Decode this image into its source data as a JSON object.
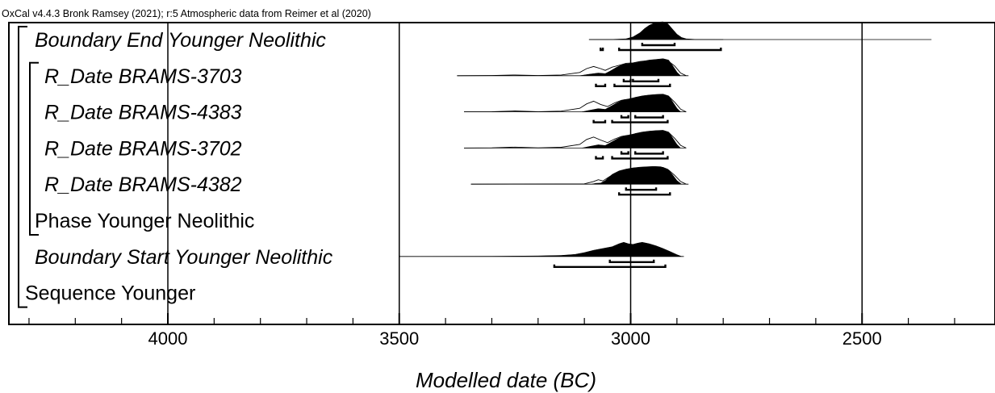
{
  "header": "OxCal v4.4.3 Bronk Ramsey (2021); r:5 Atmospheric data from Reimer et al (2020)",
  "chart_data": {
    "type": "oxcal-multiplot",
    "xlabel": "Modelled date (BC)",
    "axis": {
      "ticks": [
        4000,
        3500,
        3000,
        2500
      ],
      "range": [
        4345,
        2215
      ],
      "minor_tick_step": 100,
      "reversed": true,
      "gridlines": true
    },
    "rows": [
      {
        "label": "Boundary End Younger Neolithic",
        "italic": true,
        "indent": 1,
        "span": [
          3090,
          2350
        ],
        "posterior": [
          [
            3090,
            0
          ],
          [
            3040,
            0.01
          ],
          [
            3010,
            0.04
          ],
          [
            2995,
            0.15
          ],
          [
            2980,
            0.38
          ],
          [
            2970,
            0.62
          ],
          [
            2960,
            0.8
          ],
          [
            2950,
            0.92
          ],
          [
            2940,
            0.98
          ],
          [
            2930,
            1.0
          ],
          [
            2920,
            0.9
          ],
          [
            2910,
            0.6
          ],
          [
            2900,
            0.3
          ],
          [
            2890,
            0.12
          ],
          [
            2880,
            0.04
          ],
          [
            2860,
            0.01
          ],
          [
            2800,
            0
          ]
        ],
        "ranges_68": [
          [
            2975,
            2905
          ]
        ],
        "ranges_95": [
          [
            3065,
            3060
          ],
          [
            3025,
            2805
          ]
        ]
      },
      {
        "label": "R_Date BRAMS-3703",
        "italic": true,
        "indent": 2,
        "span": [
          3375,
          2875
        ],
        "likelihood": [
          [
            3375,
            0
          ],
          [
            3300,
            0.01
          ],
          [
            3250,
            0.04
          ],
          [
            3200,
            0.01
          ],
          [
            3150,
            0.04
          ],
          [
            3110,
            0.18
          ],
          [
            3095,
            0.4
          ],
          [
            3080,
            0.52
          ],
          [
            3065,
            0.4
          ],
          [
            3055,
            0.3
          ],
          [
            3040,
            0.48
          ],
          [
            3020,
            0.62
          ],
          [
            3010,
            0.7
          ],
          [
            2995,
            0.72
          ],
          [
            2980,
            0.8
          ],
          [
            2965,
            0.84
          ],
          [
            2950,
            0.88
          ],
          [
            2935,
            0.9
          ],
          [
            2920,
            0.85
          ],
          [
            2905,
            0.55
          ],
          [
            2892,
            0.15
          ],
          [
            2880,
            0
          ]
        ],
        "posterior": [
          [
            3110,
            0
          ],
          [
            3090,
            0.08
          ],
          [
            3070,
            0.15
          ],
          [
            3055,
            0.12
          ],
          [
            3045,
            0.25
          ],
          [
            3030,
            0.48
          ],
          [
            3015,
            0.65
          ],
          [
            3000,
            0.68
          ],
          [
            2990,
            0.72
          ],
          [
            2975,
            0.8
          ],
          [
            2960,
            0.88
          ],
          [
            2945,
            0.92
          ],
          [
            2930,
            0.96
          ],
          [
            2918,
            0.88
          ],
          [
            2910,
            0.6
          ],
          [
            2900,
            0.2
          ],
          [
            2892,
            0
          ]
        ],
        "ranges_68": [
          [
            3015,
            3000
          ],
          [
            2995,
            2940
          ]
        ],
        "ranges_95": [
          [
            3075,
            3055
          ],
          [
            3035,
            2915
          ]
        ]
      },
      {
        "label": "R_Date BRAMS-4383",
        "italic": true,
        "indent": 2,
        "span": [
          3360,
          2880
        ],
        "likelihood": [
          [
            3360,
            0
          ],
          [
            3300,
            0.01
          ],
          [
            3250,
            0.05
          ],
          [
            3200,
            0.01
          ],
          [
            3150,
            0.04
          ],
          [
            3110,
            0.2
          ],
          [
            3095,
            0.45
          ],
          [
            3080,
            0.6
          ],
          [
            3065,
            0.42
          ],
          [
            3050,
            0.3
          ],
          [
            3035,
            0.5
          ],
          [
            3020,
            0.65
          ],
          [
            3005,
            0.72
          ],
          [
            2990,
            0.8
          ],
          [
            2975,
            0.86
          ],
          [
            2960,
            0.92
          ],
          [
            2945,
            0.94
          ],
          [
            2930,
            0.95
          ],
          [
            2918,
            0.88
          ],
          [
            2905,
            0.55
          ],
          [
            2892,
            0.15
          ],
          [
            2880,
            0
          ]
        ],
        "posterior": [
          [
            3105,
            0
          ],
          [
            3090,
            0.08
          ],
          [
            3070,
            0.18
          ],
          [
            3055,
            0.14
          ],
          [
            3045,
            0.28
          ],
          [
            3030,
            0.5
          ],
          [
            3015,
            0.68
          ],
          [
            3000,
            0.72
          ],
          [
            2990,
            0.82
          ],
          [
            2975,
            0.9
          ],
          [
            2960,
            0.95
          ],
          [
            2945,
            0.98
          ],
          [
            2930,
            1.0
          ],
          [
            2918,
            0.9
          ],
          [
            2910,
            0.6
          ],
          [
            2900,
            0.2
          ],
          [
            2892,
            0
          ]
        ],
        "ranges_68": [
          [
            3020,
            3005
          ],
          [
            2990,
            2930
          ]
        ],
        "ranges_95": [
          [
            3080,
            3055
          ],
          [
            3040,
            2920
          ]
        ]
      },
      {
        "label": "R_Date BRAMS-3702",
        "italic": true,
        "indent": 2,
        "span": [
          3360,
          2880
        ],
        "likelihood": [
          [
            3360,
            0
          ],
          [
            3300,
            0.01
          ],
          [
            3250,
            0.05
          ],
          [
            3200,
            0.01
          ],
          [
            3150,
            0.04
          ],
          [
            3110,
            0.2
          ],
          [
            3095,
            0.48
          ],
          [
            3080,
            0.62
          ],
          [
            3065,
            0.45
          ],
          [
            3050,
            0.3
          ],
          [
            3035,
            0.5
          ],
          [
            3020,
            0.65
          ],
          [
            3005,
            0.72
          ],
          [
            2990,
            0.8
          ],
          [
            2975,
            0.86
          ],
          [
            2960,
            0.92
          ],
          [
            2945,
            0.94
          ],
          [
            2930,
            0.95
          ],
          [
            2918,
            0.88
          ],
          [
            2905,
            0.55
          ],
          [
            2892,
            0.15
          ],
          [
            2880,
            0
          ]
        ],
        "posterior": [
          [
            3105,
            0
          ],
          [
            3090,
            0.08
          ],
          [
            3070,
            0.18
          ],
          [
            3055,
            0.14
          ],
          [
            3045,
            0.28
          ],
          [
            3030,
            0.5
          ],
          [
            3015,
            0.68
          ],
          [
            3000,
            0.72
          ],
          [
            2990,
            0.82
          ],
          [
            2975,
            0.9
          ],
          [
            2960,
            0.95
          ],
          [
            2945,
            0.98
          ],
          [
            2930,
            1.0
          ],
          [
            2918,
            0.9
          ],
          [
            2910,
            0.6
          ],
          [
            2900,
            0.2
          ],
          [
            2892,
            0
          ]
        ],
        "ranges_68": [
          [
            3020,
            3005
          ],
          [
            2990,
            2930
          ]
        ],
        "ranges_95": [
          [
            3075,
            3060
          ],
          [
            3040,
            2920
          ]
        ]
      },
      {
        "label": "R_Date BRAMS-4382",
        "italic": true,
        "indent": 2,
        "span": [
          3345,
          2875
        ],
        "likelihood": [
          [
            3345,
            0
          ],
          [
            3150,
            0.01
          ],
          [
            3100,
            0.02
          ],
          [
            3080,
            0.15
          ],
          [
            3070,
            0.25
          ],
          [
            3060,
            0.18
          ],
          [
            3050,
            0.35
          ],
          [
            3035,
            0.6
          ],
          [
            3020,
            0.75
          ],
          [
            3005,
            0.82
          ],
          [
            2990,
            0.88
          ],
          [
            2975,
            0.92
          ],
          [
            2960,
            0.95
          ],
          [
            2945,
            0.96
          ],
          [
            2930,
            0.94
          ],
          [
            2918,
            0.8
          ],
          [
            2905,
            0.5
          ],
          [
            2892,
            0.15
          ],
          [
            2880,
            0
          ]
        ],
        "posterior": [
          [
            3085,
            0
          ],
          [
            3075,
            0.05
          ],
          [
            3065,
            0.06
          ],
          [
            3055,
            0.2
          ],
          [
            3040,
            0.55
          ],
          [
            3025,
            0.75
          ],
          [
            3010,
            0.85
          ],
          [
            2995,
            0.92
          ],
          [
            2980,
            0.96
          ],
          [
            2965,
            0.98
          ],
          [
            2950,
            1.0
          ],
          [
            2935,
            0.98
          ],
          [
            2920,
            0.85
          ],
          [
            2910,
            0.55
          ],
          [
            2900,
            0.2
          ],
          [
            2890,
            0
          ]
        ],
        "ranges_68": [
          [
            3010,
            2945
          ]
        ],
        "ranges_95": [
          [
            3025,
            2915
          ]
        ]
      },
      {
        "label": "Phase Younger Neolithic",
        "italic": false,
        "indent": 1
      },
      {
        "label": "Boundary Start Younger Neolithic",
        "italic": true,
        "indent": 1,
        "span": [
          3500,
          2885
        ],
        "posterior": [
          [
            3500,
            0
          ],
          [
            3300,
            0.01
          ],
          [
            3200,
            0.03
          ],
          [
            3150,
            0.06
          ],
          [
            3120,
            0.12
          ],
          [
            3100,
            0.22
          ],
          [
            3080,
            0.35
          ],
          [
            3060,
            0.45
          ],
          [
            3040,
            0.55
          ],
          [
            3025,
            0.72
          ],
          [
            3015,
            0.8
          ],
          [
            3005,
            0.72
          ],
          [
            2995,
            0.68
          ],
          [
            2985,
            0.75
          ],
          [
            2975,
            0.8
          ],
          [
            2960,
            0.72
          ],
          [
            2945,
            0.6
          ],
          [
            2930,
            0.45
          ],
          [
            2915,
            0.28
          ],
          [
            2900,
            0.1
          ],
          [
            2890,
            0
          ]
        ],
        "ranges_68": [
          [
            3045,
            2950
          ]
        ],
        "ranges_95": [
          [
            3165,
            2925
          ]
        ]
      },
      {
        "label": "Sequence Younger",
        "italic": false,
        "indent": 0
      }
    ],
    "brackets": [
      {
        "name": "sequence",
        "from_row": 0,
        "to_row": 7,
        "level": 0
      },
      {
        "name": "phase",
        "from_row": 1,
        "to_row": 5,
        "level": 1
      }
    ]
  }
}
